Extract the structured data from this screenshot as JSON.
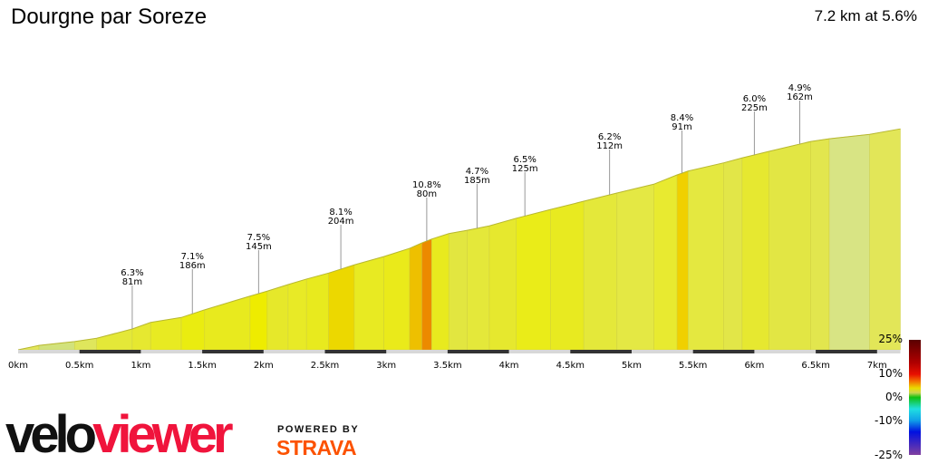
{
  "title": "Dourgne par Soreze",
  "summary": "7.2 km at 5.6%",
  "chart_data": {
    "type": "area",
    "xlabel": "",
    "ylabel": "",
    "x_unit": "km",
    "xlim": [
      0,
      7.19
    ],
    "x_ticks": [
      "0km",
      "0.5km",
      "1km",
      "1.5km",
      "2km",
      "2.5km",
      "3km",
      "3.5km",
      "4km",
      "4.5km",
      "5km",
      "5.5km",
      "6km",
      "6.5km",
      "7km"
    ],
    "x_tick_values": [
      0,
      0.5,
      1,
      1.5,
      2,
      2.5,
      3,
      3.5,
      4,
      4.5,
      5,
      5.5,
      6,
      6.5,
      7
    ],
    "profile_note_units": "distance km, elevation gain m",
    "profile": [
      [
        0,
        0
      ],
      [
        0.17,
        8
      ],
      [
        0.46,
        15
      ],
      [
        0.64,
        21
      ],
      [
        0.93,
        38
      ],
      [
        1.08,
        50
      ],
      [
        1.33,
        59
      ],
      [
        1.52,
        73
      ],
      [
        1.89,
        98
      ],
      [
        2.03,
        107
      ],
      [
        2.2,
        119
      ],
      [
        2.35,
        129
      ],
      [
        2.53,
        140
      ],
      [
        2.74,
        155
      ],
      [
        2.98,
        170
      ],
      [
        3.19,
        185
      ],
      [
        3.29,
        195
      ],
      [
        3.37,
        202
      ],
      [
        3.51,
        212
      ],
      [
        3.66,
        218
      ],
      [
        3.84,
        226
      ],
      [
        4.06,
        240
      ],
      [
        4.34,
        256
      ],
      [
        4.61,
        271
      ],
      [
        4.88,
        286
      ],
      [
        5.18,
        302
      ],
      [
        5.37,
        319
      ],
      [
        5.46,
        326
      ],
      [
        5.75,
        341
      ],
      [
        5.9,
        350
      ],
      [
        6.12,
        362
      ],
      [
        6.46,
        380
      ],
      [
        6.61,
        385
      ],
      [
        6.94,
        393
      ],
      [
        7.19,
        403
      ]
    ],
    "segment_colors": [
      "#e2e65a",
      "#d2e27c",
      "#dfe65c",
      "#e4e838",
      "#e6e830",
      "#e8ea22",
      "#eaec10",
      "#e8ea1e",
      "#eeec00",
      "#e6e82a",
      "#e8ea26",
      "#e8ea1e",
      "#ecd800",
      "#e8ea22",
      "#eaea1a",
      "#eec000",
      "#ec8a00",
      "#e8ea1e",
      "#e2e640",
      "#e4e83a",
      "#e6e82e",
      "#eaec18",
      "#e8ea20",
      "#e4e83a",
      "#e4e844",
      "#e8ea30",
      "#f0d000",
      "#e4e840",
      "#e2e648",
      "#e6e830",
      "#e2e644",
      "#e2e64e",
      "#d8e484",
      "#e2e658"
    ],
    "annotations": [
      {
        "km": 0.93,
        "grade": "6.3%",
        "length": "81m"
      },
      {
        "km": 1.42,
        "grade": "7.1%",
        "length": "186m"
      },
      {
        "km": 1.96,
        "grade": "7.5%",
        "length": "145m"
      },
      {
        "km": 2.63,
        "grade": "8.1%",
        "length": "204m"
      },
      {
        "km": 3.33,
        "grade": "10.8%",
        "length": "80m"
      },
      {
        "km": 3.74,
        "grade": "4.7%",
        "length": "185m"
      },
      {
        "km": 4.13,
        "grade": "6.5%",
        "length": "125m"
      },
      {
        "km": 4.82,
        "grade": "6.2%",
        "length": "112m"
      },
      {
        "km": 5.41,
        "grade": "8.4%",
        "length": "91m"
      },
      {
        "km": 6.0,
        "grade": "6.0%",
        "length": "225m"
      },
      {
        "km": 6.37,
        "grade": "4.9%",
        "length": "162m"
      }
    ],
    "gradient_legend": {
      "labels": [
        "25%",
        "10%",
        "0%",
        "-10%",
        "-25%"
      ],
      "values": [
        25,
        10,
        0,
        -10,
        -25
      ],
      "colors": {
        "25": "#5a0000",
        "15": "#b00000",
        "10": "#e81000",
        "7": "#f47000",
        "4": "#eadc00",
        "2": "#c8d450",
        "0": "#10c010",
        "-5": "#20e0e0",
        "-10": "#10a0e8",
        "-15": "#0010e0",
        "-25": "#8040a0"
      }
    }
  },
  "branding": {
    "velo": "velo",
    "viewer": "viewer",
    "powered_by": "POWERED BY",
    "strava": "STRAVA"
  }
}
